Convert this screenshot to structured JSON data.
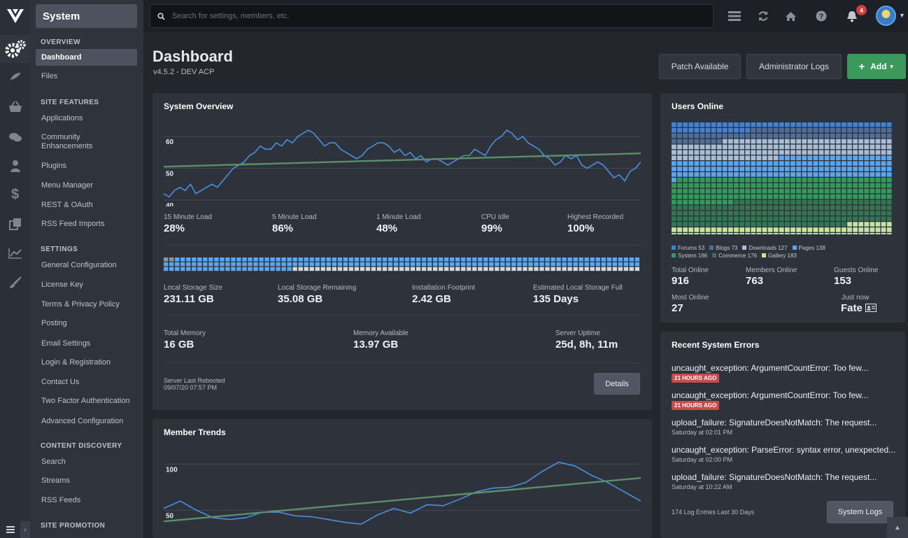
{
  "app": {
    "section_title": "System"
  },
  "search": {
    "placeholder": "Search for settings, members, etc."
  },
  "topbar": {
    "notification_count": "4"
  },
  "sidebar": {
    "groups": [
      {
        "heading": "OVERVIEW",
        "items": [
          "Dashboard",
          "Files"
        ]
      },
      {
        "heading": "SITE FEATURES",
        "items": [
          "Applications",
          "Community Enhancements",
          "Plugins",
          "Menu Manager",
          "REST & OAuth",
          "RSS Feed Imports"
        ]
      },
      {
        "heading": "SETTINGS",
        "items": [
          "General Configuration",
          "License Key",
          "Terms & Privacy Policy",
          "Posting",
          "Email Settings",
          "Login & Registration",
          "Contact Us",
          "Two Factor Authentication",
          "Advanced Configuration"
        ]
      },
      {
        "heading": "CONTENT DISCOVERY",
        "items": [
          "Search",
          "Streams",
          "RSS Feeds"
        ]
      },
      {
        "heading": "SITE PROMOTION",
        "items": []
      }
    ],
    "community_line1": "Community",
    "community_line2": "Enhancements"
  },
  "page": {
    "title": "Dashboard",
    "subtitle": "v4.5.2 - DEV ACP",
    "buttons": {
      "patch": "Patch Available",
      "admin_logs": "Administrator Logs",
      "add": "Add"
    }
  },
  "system_overview": {
    "title": "System Overview",
    "load_stats": [
      {
        "label": "15 Minute Load",
        "value": "28%"
      },
      {
        "label": "5 Minute Load",
        "value": "86%"
      },
      {
        "label": "1 Minute Load",
        "value": "48%"
      },
      {
        "label": "CPU Idle",
        "value": "99%"
      },
      {
        "label": "Highest Recorded",
        "value": "100%"
      }
    ],
    "storage_used_fraction": 0.848,
    "storage_stats": [
      {
        "label": "Local Storage Size",
        "value": "231.11 GB"
      },
      {
        "label": "Local Storage Remaining",
        "value": "35.08 GB"
      },
      {
        "label": "Installation Footprint",
        "value": "2.42 GB"
      },
      {
        "label": "Estimated Local Storage Full",
        "value": "135 Days"
      }
    ],
    "memory_stats": [
      {
        "label": "Total Memory",
        "value": "16 GB"
      },
      {
        "label": "Memory Available",
        "value": "13.97 GB"
      },
      {
        "label": "Server Uptime",
        "value": "25d, 8h, 11m"
      }
    ],
    "rebooted_label": "Server Last Rebooted",
    "rebooted_value": "09/07/20 07:57 PM",
    "details_button": "Details"
  },
  "chart_data": [
    {
      "type": "line",
      "title": "",
      "ylim": [
        38,
        64
      ],
      "yticks": [
        "60",
        "50",
        "40"
      ],
      "series": [
        {
          "values": [
            42,
            41,
            43,
            44,
            43,
            45,
            42,
            43,
            44,
            45,
            44,
            46,
            48,
            50,
            51,
            52,
            54,
            55,
            57,
            56,
            56,
            58,
            57,
            59,
            58,
            60,
            61,
            62,
            61,
            59,
            57,
            58,
            58,
            56,
            55,
            54,
            53,
            54,
            56,
            57,
            58,
            58,
            57,
            55,
            56,
            54,
            55,
            53,
            54,
            52,
            53,
            53,
            52,
            51,
            52,
            53,
            54,
            54,
            56,
            55,
            54,
            57,
            59,
            60,
            62,
            61,
            59,
            60,
            58,
            57,
            56,
            54,
            53,
            51,
            52,
            54,
            53,
            54,
            51,
            50,
            51,
            52,
            51,
            49,
            47,
            48,
            46,
            49,
            50,
            52
          ]
        },
        {
          "values": [
            50.5,
            54.7
          ]
        }
      ]
    },
    {
      "type": "line",
      "title": "",
      "ylim": [
        20,
        120
      ],
      "yticks": [
        "100",
        "50"
      ],
      "series": [
        {
          "values": [
            52,
            60,
            50,
            42,
            40,
            42,
            48,
            48,
            44,
            43,
            40,
            37,
            35,
            45,
            52,
            47,
            56,
            55,
            62,
            70,
            74,
            75,
            80,
            92,
            102,
            98,
            88,
            80,
            70,
            60
          ]
        },
        {
          "values": [
            38,
            85
          ]
        }
      ]
    }
  ],
  "users_online": {
    "title": "Users Online",
    "segments": [
      {
        "name": "Forums",
        "count": 53,
        "color": "#3f82d6"
      },
      {
        "name": "Blogs",
        "count": 73,
        "color": "#4f6f98"
      },
      {
        "name": "Downloads",
        "count": 127,
        "color": "#a8bed6"
      },
      {
        "name": "Pages",
        "count": 138,
        "color": "#5aa6ef"
      },
      {
        "name": "System",
        "count": 166,
        "color": "#2e9e5c"
      },
      {
        "name": "Commerce",
        "count": 176,
        "color": "#357552"
      },
      {
        "name": "Gallery",
        "count": 183,
        "color": "#c6e3a6"
      }
    ],
    "legend_row1": [
      "Forums 53",
      "Blogs 73",
      "Downloads 127",
      "Pages 138"
    ],
    "legend_row2": [
      "System 166",
      "Commerce 176",
      "Gallery 183"
    ],
    "stats": [
      {
        "label": "Total Online",
        "value": "916"
      },
      {
        "label": "Members Online",
        "value": "763"
      },
      {
        "label": "Guests Online",
        "value": "153"
      }
    ],
    "most_label": "Most Online",
    "most_value": "27",
    "just_now_label": "Just now",
    "just_now_user": "Fate"
  },
  "errors": {
    "title": "Recent System Errors",
    "items": [
      {
        "text": "uncaught_exception: ArgumentCountError: Too few...",
        "badge": "21 HOURS AGO",
        "time": ""
      },
      {
        "text": "uncaught_exception: ArgumentCountError: Too few...",
        "badge": "21 HOURS AGO",
        "time": ""
      },
      {
        "text": "upload_failure: SignatureDoesNotMatch: The request...",
        "badge": "",
        "time": "Saturday at 02:01 PM"
      },
      {
        "text": "uncaught_exception: ParseError: syntax error, unexpected...",
        "badge": "",
        "time": "Saturday at 02:00 PM"
      },
      {
        "text": "upload_failure: SignatureDoesNotMatch: The request...",
        "badge": "",
        "time": "Saturday at 10:22 AM"
      }
    ],
    "footer": "174 Log Entries Last 30 Days",
    "logs_button": "System Logs"
  },
  "member_trends": {
    "title": "Member Trends"
  },
  "colors": {
    "accent_blue": "#4a8fe0",
    "trend_green": "#5b8f6b",
    "add_green": "#3b9a5b",
    "error_red": "#c94a4a"
  },
  "icons": [
    "logo-icon",
    "gears-icon",
    "feather-icon",
    "basket-icon",
    "comments-icon",
    "user-icon",
    "dollar-icon",
    "copy-icon",
    "chart-icon",
    "brush-icon",
    "search-icon",
    "list-icon",
    "refresh-icon",
    "home-icon",
    "help-icon",
    "bell-icon"
  ]
}
